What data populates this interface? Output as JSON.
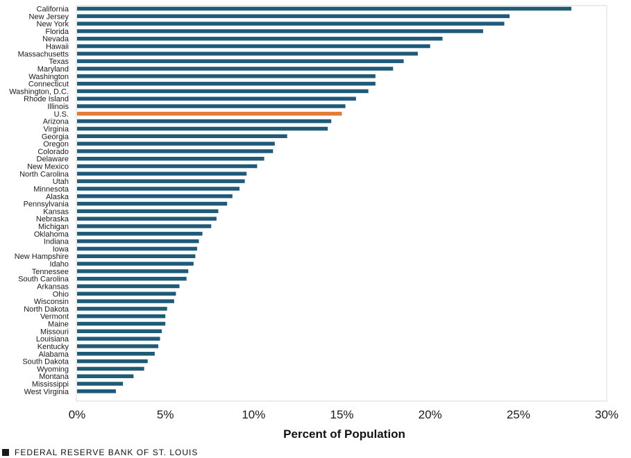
{
  "colors": {
    "bar": "#1f5a78",
    "highlight": "#e07b39",
    "frame": "#d9d9d9"
  },
  "footer": {
    "text": "FEDERAL RESERVE BANK OF ST. LOUIS",
    "icon": "square-bullet-icon"
  },
  "chart_data": {
    "type": "bar",
    "orientation": "horizontal",
    "title": "",
    "xlabel": "Percent of Population",
    "ylabel": "",
    "xlim": [
      0,
      30
    ],
    "xticks": [
      "0%",
      "5%",
      "10%",
      "15%",
      "20%",
      "25%",
      "30%"
    ],
    "grid": false,
    "highlight_category": "U.S.",
    "categories": [
      "California",
      "New Jersey",
      "New York",
      "Florida",
      "Nevada",
      "Hawaii",
      "Massachusetts",
      "Texas",
      "Maryland",
      "Washington",
      "Connecticut",
      "Washington, D.C.",
      "Rhode Island",
      "Illinois",
      "U.S.",
      "Arizona",
      "Virginia",
      "Georgia",
      "Oregon",
      "Colorado",
      "Delaware",
      "New Mexico",
      "North Carolina",
      "Utah",
      "Minnesota",
      "Alaska",
      "Pennsylvania",
      "Kansas",
      "Nebraska",
      "Michigan",
      "Oklahoma",
      "Indiana",
      "Iowa",
      "New Hampshire",
      "Idaho",
      "Tennessee",
      "South Carolina",
      "Arkansas",
      "Ohio",
      "Wisconsin",
      "North Dakota",
      "Vermont",
      "Maine",
      "Missouri",
      "Louisiana",
      "Kentucky",
      "Alabama",
      "South Dakota",
      "Wyoming",
      "Montana",
      "Mississippi",
      "West Virginia"
    ],
    "values": [
      28.0,
      24.5,
      24.2,
      23.0,
      20.7,
      20.0,
      19.3,
      18.5,
      17.9,
      16.9,
      16.9,
      16.5,
      15.8,
      15.2,
      15.0,
      14.4,
      14.2,
      11.9,
      11.2,
      11.1,
      10.6,
      10.2,
      9.6,
      9.5,
      9.2,
      8.8,
      8.5,
      8.0,
      7.9,
      7.6,
      7.1,
      6.9,
      6.8,
      6.7,
      6.6,
      6.3,
      6.2,
      5.8,
      5.6,
      5.5,
      5.1,
      5.0,
      5.0,
      4.8,
      4.7,
      4.6,
      4.4,
      4.0,
      3.8,
      3.2,
      2.6,
      2.2
    ]
  }
}
